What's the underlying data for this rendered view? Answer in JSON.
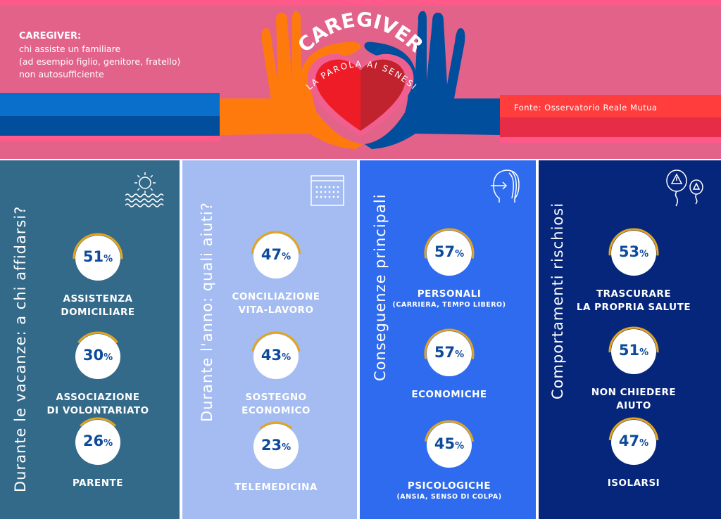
{
  "header": {
    "definition_title": "CAREGIVER:",
    "definition_lines": [
      "chi assiste un familiare",
      "(ad esempio figlio, genitore, fratello)",
      "non autosufficiente"
    ],
    "logo_title": "CAREGIVER",
    "logo_subtitle": "LA PAROLA AI SENESI",
    "source": "Fonte: Osservatorio Reale Mutua"
  },
  "colors": {
    "panel1": "#336a8a",
    "panel2": "#a4bcf2",
    "panel3": "#2f6bef",
    "panel4": "#06267c",
    "arc": "#e3a51c",
    "pct": "#0e4a9c"
  },
  "panels": [
    {
      "title": "Durante le vacanze: a chi affidarsi?",
      "icon": "sun-sea-icon",
      "items": [
        {
          "value": 51,
          "label": "ASSISTENZA",
          "label2": "DOMICILIARE"
        },
        {
          "value": 30,
          "label": "ASSOCIAZIONE",
          "label2": "DI VOLONTARIATO"
        },
        {
          "value": 26,
          "label": "PARENTE"
        }
      ]
    },
    {
      "title": "Durante l'anno: quali aiuti?",
      "icon": "calendar-icon",
      "items": [
        {
          "value": 47,
          "label": "CONCILIAZIONE",
          "label2": "VITA-LAVORO"
        },
        {
          "value": 43,
          "label": "SOSTEGNO",
          "label2": "ECONOMICO"
        },
        {
          "value": 23,
          "label": "TELEMEDICINA"
        }
      ]
    },
    {
      "title": "Conseguenze principali",
      "icon": "head-icon",
      "items": [
        {
          "value": 57,
          "label": "PERSONALI",
          "sub": "(CARRIERA, TEMPO LIBERO)"
        },
        {
          "value": 57,
          "label": "ECONOMICHE"
        },
        {
          "value": 45,
          "label": "PSICOLOGICHE",
          "sub": "(ANSIA, SENSO DI COLPA)"
        }
      ]
    },
    {
      "title": "Comportamenti rischiosi",
      "icon": "warning-balloons-icon",
      "items": [
        {
          "value": 53,
          "label": "TRASCURARE",
          "label2": "LA PROPRIA SALUTE"
        },
        {
          "value": 51,
          "label": "NON CHIEDERE",
          "label2": "AIUTO"
        },
        {
          "value": 47,
          "label": "ISOLARSI"
        }
      ]
    }
  ],
  "percent_sign": "%"
}
